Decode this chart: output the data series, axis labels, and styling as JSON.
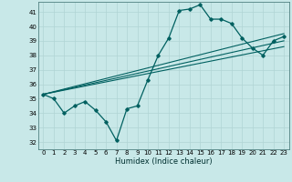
{
  "xlabel": "Humidex (Indice chaleur)",
  "bg_color": "#c8e8e8",
  "grid_color": "#b0d4d4",
  "line_color": "#006060",
  "xlim": [
    -0.5,
    23.5
  ],
  "ylim": [
    31.5,
    41.7
  ],
  "xticks": [
    0,
    1,
    2,
    3,
    4,
    5,
    6,
    7,
    8,
    9,
    10,
    11,
    12,
    13,
    14,
    15,
    16,
    17,
    18,
    19,
    20,
    21,
    22,
    23
  ],
  "yticks": [
    32,
    33,
    34,
    35,
    36,
    37,
    38,
    39,
    40,
    41
  ],
  "series1_x": [
    0,
    1,
    2,
    3,
    4,
    5,
    6,
    7,
    8,
    9,
    10,
    11,
    12,
    13,
    14,
    15,
    16,
    17,
    18,
    19,
    20,
    21,
    22,
    23
  ],
  "series1_y": [
    35.3,
    35.0,
    34.0,
    34.5,
    34.8,
    34.2,
    33.4,
    32.1,
    34.3,
    34.5,
    36.3,
    38.0,
    39.2,
    41.1,
    41.2,
    41.5,
    40.5,
    40.5,
    40.2,
    39.2,
    38.5,
    38.0,
    39.0,
    39.3
  ],
  "series2_x": [
    0,
    23
  ],
  "series2_y": [
    35.3,
    39.5
  ],
  "series3_x": [
    0,
    23
  ],
  "series3_y": [
    35.3,
    38.6
  ],
  "series4_x": [
    0,
    23
  ],
  "series4_y": [
    35.3,
    39.0
  ]
}
